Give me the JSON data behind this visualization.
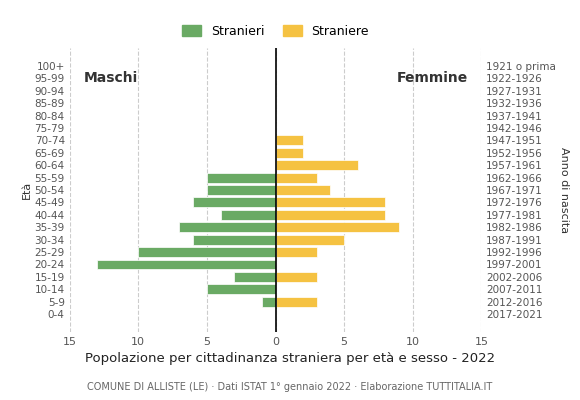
{
  "age_groups": [
    "100+",
    "95-99",
    "90-94",
    "85-89",
    "80-84",
    "75-79",
    "70-74",
    "65-69",
    "60-64",
    "55-59",
    "50-54",
    "45-49",
    "40-44",
    "35-39",
    "30-34",
    "25-29",
    "20-24",
    "15-19",
    "10-14",
    "5-9",
    "0-4"
  ],
  "birth_years": [
    "1921 o prima",
    "1922-1926",
    "1927-1931",
    "1932-1936",
    "1937-1941",
    "1942-1946",
    "1947-1951",
    "1952-1956",
    "1957-1961",
    "1962-1966",
    "1967-1971",
    "1972-1976",
    "1977-1981",
    "1982-1986",
    "1987-1991",
    "1992-1996",
    "1997-2001",
    "2002-2006",
    "2007-2011",
    "2012-2016",
    "2017-2021"
  ],
  "males": [
    0,
    0,
    0,
    0,
    0,
    0,
    0,
    0,
    0,
    5,
    5,
    6,
    4,
    7,
    6,
    10,
    13,
    3,
    5,
    1,
    0
  ],
  "females": [
    0,
    0,
    0,
    0,
    0,
    0,
    2,
    2,
    6,
    3,
    4,
    8,
    8,
    9,
    5,
    3,
    0,
    3,
    0,
    3,
    0
  ],
  "male_color": "#6aaa64",
  "female_color": "#f5c242",
  "title": "Popolazione per cittadinanza straniera per età e sesso - 2022",
  "subtitle": "COMUNE DI ALLISTE (LE) · Dati ISTAT 1° gennaio 2022 · Elaborazione TUTTITALIA.IT",
  "legend_male": "Stranieri",
  "legend_female": "Straniere",
  "ylabel_left": "Età",
  "label_anno": "Anno di nascita",
  "label_maschi": "Maschi",
  "label_femmine": "Femmine",
  "xlim": 15,
  "xticks": [
    -15,
    -10,
    -5,
    0,
    5,
    10,
    15
  ],
  "xticklabels": [
    "15",
    "10",
    "5",
    "0",
    "5",
    "10",
    "15"
  ],
  "background_color": "#ffffff",
  "grid_color": "#cccccc",
  "bar_height": 0.8
}
